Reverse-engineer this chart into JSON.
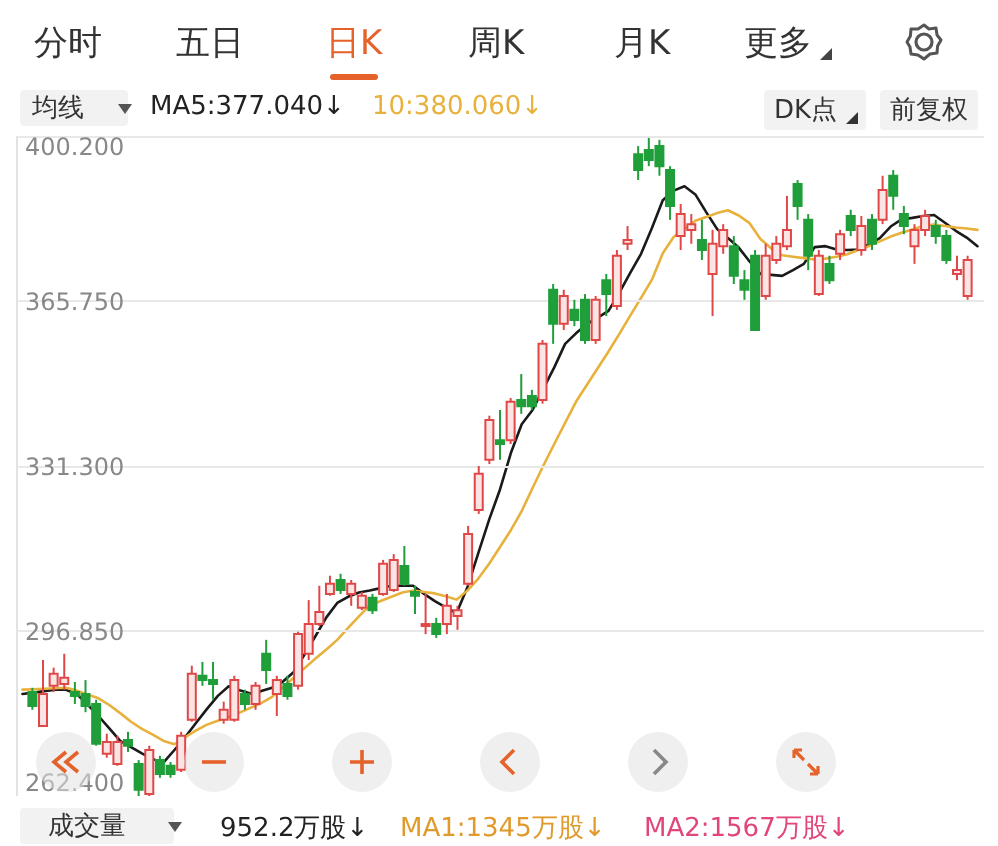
{
  "chart_data": [
    {
      "type": "candlestick",
      "tick_labels": "y",
      "grid": "y",
      "annotations": [
        "分时",
        "五日",
        "日K",
        "周K",
        "月K",
        "更多",
        "均线",
        "MA5:377.040↓",
        "10:380.060↓",
        "DK点",
        "前复权",
        "成交量",
        "952.2万股↓",
        "MA1:1345万股↓",
        "MA2:1567万股↓"
      ],
      "categories": [
        null,
        null,
        null,
        null,
        null,
        null,
        null,
        null,
        null,
        null,
        null,
        null,
        null,
        null,
        null,
        null,
        null,
        null,
        null,
        null,
        null,
        null,
        null,
        null,
        null,
        null,
        null,
        null,
        null,
        null,
        null,
        null,
        null,
        null,
        null,
        null,
        null,
        null,
        null,
        null,
        null,
        null,
        null,
        null,
        null,
        null,
        null,
        null,
        null,
        null,
        null,
        null,
        null,
        null,
        null,
        null,
        null,
        null,
        null,
        null,
        null,
        null,
        null,
        null,
        null,
        null,
        null,
        null,
        null,
        null,
        null,
        null,
        null,
        null,
        null,
        null,
        null,
        null,
        null,
        null,
        null,
        null,
        null,
        null,
        null,
        null,
        null,
        null,
        null
      ],
      "ylim": [
        262.4,
        400.2
      ],
      "yticks": [
        {
          "value": 262.4,
          "label": "262.400"
        },
        {
          "value": 296.85,
          "label": "296.850"
        },
        {
          "value": 331.3,
          "label": "331.300"
        },
        {
          "value": 365.75,
          "label": "365.750"
        },
        {
          "value": 400.2,
          "label": "400.200"
        }
      ],
      "ohlc": [
        [
          284.1,
          285.0,
          280.4,
          281.2
        ],
        [
          277.0,
          290.8,
          277.0,
          283.7
        ],
        [
          285.4,
          289.2,
          284.1,
          287.9
        ],
        [
          285.8,
          292.1,
          284.6,
          287.1
        ],
        [
          284.1,
          286.2,
          281.6,
          283.3
        ],
        [
          283.7,
          286.6,
          279.9,
          281.2
        ],
        [
          281.6,
          282.5,
          272.9,
          273.3
        ],
        [
          271.2,
          275.4,
          270.4,
          273.7
        ],
        [
          269.1,
          275.0,
          268.7,
          273.7
        ],
        [
          274.1,
          275.8,
          271.6,
          272.9
        ],
        [
          269.1,
          269.9,
          262.4,
          263.7
        ],
        [
          262.8,
          272.9,
          262.4,
          272.0
        ],
        [
          269.9,
          270.8,
          266.2,
          267.0
        ],
        [
          268.7,
          269.5,
          266.2,
          267.0
        ],
        [
          267.9,
          275.8,
          267.4,
          275.0
        ],
        [
          278.3,
          289.6,
          277.9,
          287.9
        ],
        [
          287.5,
          290.4,
          285.4,
          286.6
        ],
        [
          286.6,
          290.4,
          282.5,
          285.8
        ],
        [
          278.3,
          282.1,
          277.5,
          280.4
        ],
        [
          278.3,
          287.5,
          277.9,
          286.6
        ],
        [
          283.7,
          284.6,
          280.4,
          281.6
        ],
        [
          281.6,
          286.2,
          280.4,
          285.4
        ],
        [
          292.1,
          295.0,
          285.8,
          288.7
        ],
        [
          283.7,
          287.5,
          279.1,
          286.6
        ],
        [
          285.8,
          287.5,
          282.5,
          283.3
        ],
        [
          285.4,
          296.7,
          284.6,
          296.2
        ],
        [
          292.1,
          303.3,
          290.8,
          298.3
        ],
        [
          298.3,
          306.3,
          297.9,
          300.8
        ],
        [
          304.6,
          308.4,
          304.2,
          306.7
        ],
        [
          307.5,
          308.8,
          304.6,
          305.4
        ],
        [
          304.6,
          307.5,
          302.1,
          306.7
        ],
        [
          301.7,
          305.0,
          301.2,
          304.2
        ],
        [
          303.8,
          304.6,
          300.4,
          301.2
        ],
        [
          304.6,
          311.7,
          304.2,
          310.9
        ],
        [
          305.4,
          312.9,
          305.0,
          311.7
        ],
        [
          310.4,
          314.6,
          306.3,
          306.7
        ],
        [
          305.0,
          306.3,
          300.4,
          304.2
        ],
        [
          297.9,
          304.6,
          296.2,
          298.3
        ],
        [
          298.3,
          299.6,
          295.4,
          296.2
        ],
        [
          298.3,
          304.6,
          296.2,
          302.1
        ],
        [
          300.0,
          302.1,
          297.1,
          301.2
        ],
        [
          306.7,
          318.8,
          306.3,
          317.1
        ],
        [
          322.1,
          331.3,
          321.3,
          329.7
        ],
        [
          332.6,
          341.8,
          331.7,
          340.9
        ],
        [
          336.7,
          343.0,
          332.6,
          335.9
        ],
        [
          336.7,
          345.5,
          335.9,
          344.7
        ],
        [
          345.1,
          350.5,
          342.2,
          343.8
        ],
        [
          345.9,
          347.2,
          343.0,
          343.8
        ],
        [
          345.1,
          357.6,
          344.3,
          356.8
        ],
        [
          368.1,
          369.3,
          356.8,
          361.0
        ],
        [
          361.0,
          368.1,
          359.7,
          366.8
        ],
        [
          363.9,
          366.0,
          360.5,
          361.8
        ],
        [
          366.0,
          367.2,
          356.8,
          357.6
        ],
        [
          357.6,
          366.8,
          356.8,
          366.0
        ],
        [
          370.1,
          371.4,
          362.6,
          367.2
        ],
        [
          364.7,
          376.4,
          363.9,
          375.2
        ],
        [
          377.7,
          381.4,
          376.4,
          378.5
        ],
        [
          396.4,
          398.1,
          391.0,
          393.1
        ],
        [
          397.3,
          399.8,
          393.9,
          395.2
        ],
        [
          398.1,
          399.4,
          391.9,
          393.9
        ],
        [
          393.1,
          393.9,
          382.7,
          385.6
        ],
        [
          379.3,
          386.0,
          376.4,
          383.9
        ],
        [
          380.6,
          383.9,
          377.7,
          381.8
        ],
        [
          378.5,
          382.7,
          374.3,
          376.4
        ],
        [
          371.4,
          380.6,
          362.6,
          377.7
        ],
        [
          377.2,
          381.8,
          375.6,
          380.6
        ],
        [
          377.2,
          379.3,
          369.3,
          371.0
        ],
        [
          370.1,
          372.2,
          366.0,
          368.1
        ],
        [
          375.2,
          376.4,
          359.7,
          359.7
        ],
        [
          366.8,
          377.7,
          366.0,
          375.2
        ],
        [
          374.3,
          379.3,
          373.5,
          377.7
        ],
        [
          377.2,
          387.7,
          376.4,
          380.6
        ],
        [
          390.2,
          391.0,
          382.7,
          385.6
        ],
        [
          382.7,
          383.9,
          372.2,
          375.2
        ],
        [
          367.2,
          376.4,
          366.8,
          375.2
        ],
        [
          373.5,
          375.2,
          369.3,
          370.1
        ],
        [
          375.6,
          380.6,
          374.3,
          379.7
        ],
        [
          383.5,
          384.8,
          379.3,
          380.6
        ],
        [
          376.4,
          383.5,
          375.2,
          381.4
        ],
        [
          382.7,
          383.9,
          376.4,
          377.7
        ],
        [
          382.7,
          391.9,
          381.8,
          388.9
        ],
        [
          391.9,
          393.1,
          384.8,
          387.7
        ],
        [
          383.9,
          385.6,
          379.7,
          381.4
        ],
        [
          377.2,
          381.8,
          373.5,
          380.6
        ],
        [
          380.6,
          384.8,
          379.3,
          383.5
        ],
        [
          381.4,
          382.7,
          377.7,
          379.3
        ],
        [
          379.3,
          380.6,
          373.5,
          374.3
        ],
        [
          371.4,
          375.2,
          370.1,
          372.2
        ],
        [
          366.8,
          375.2,
          366.0,
          374.3
        ]
      ]
    },
    {
      "type": "line",
      "tick_labels": false,
      "categories": [
        null,
        null,
        null,
        null,
        null,
        null,
        null,
        null,
        null,
        null,
        null,
        null,
        null,
        null,
        null,
        null,
        null,
        null,
        null,
        null,
        null,
        null,
        null,
        null,
        null,
        null,
        null,
        null,
        null,
        null,
        null,
        null,
        null,
        null,
        null,
        null,
        null,
        null,
        null,
        null,
        null,
        null,
        null,
        null,
        null,
        null,
        null,
        null,
        null,
        null,
        null,
        null,
        null,
        null,
        null,
        null,
        null,
        null,
        null,
        null,
        null,
        null,
        null,
        null,
        null,
        null,
        null,
        null,
        null,
        null,
        null,
        null,
        null,
        null,
        null,
        null,
        null,
        null,
        null,
        null,
        null,
        null,
        null,
        null,
        null,
        null,
        null,
        null,
        null
      ],
      "ylim": [
        262.4,
        400.2
      ],
      "series": [
        {
          "color": "#1a1a1a",
          "values": [
            283.7,
            284.0,
            284.3,
            284.6,
            284.6,
            283.7,
            281.5,
            279.1,
            276.5,
            273.9,
            272.6,
            271.3,
            270.1,
            269.4,
            272.0,
            274.7,
            277.7,
            280.6,
            283.3,
            285.3,
            284.5,
            283.8,
            284.3,
            285.0,
            286.3,
            288.3,
            292.0,
            295.8,
            299.7,
            302.7,
            304.0,
            304.9,
            305.3,
            305.8,
            306.3,
            306.3,
            306.3,
            304.6,
            303.1,
            301.8,
            300.6,
            306.0,
            313.1,
            320.1,
            326.4,
            334.0,
            340.0,
            343.0,
            null,
            351.9,
            356.8,
            359.0,
            360.9,
            362.3,
            363.7,
            367.5,
            371.6,
            375.6,
            381.0,
            386.8,
            388.8,
            389.7,
            388.0,
            384.3,
            380.8,
            378.9,
            376.9,
            374.0,
            371.4,
            371.2,
            371.0,
            372.2,
            373.5,
            377.0,
            377.2,
            376.5,
            376.4,
            376.5,
            377.6,
            378.9,
            381.3,
            382.8,
            383.1,
            383.5,
            383.7,
            382.1,
            380.4,
            379.0,
            377.2
          ]
        },
        {
          "color": "#e8b13c",
          "values": [
            284.6,
            284.7,
            284.8,
            284.9,
            285.0,
            284.4,
            283.6,
            282.8,
            281.4,
            279.7,
            277.9,
            276.4,
            275.2,
            273.9,
            273.2,
            274.7,
            276.1,
            277.3,
            278.1,
            278.9,
            279.8,
            280.8,
            281.8,
            283.1,
            285.1,
            287.1,
            289.1,
            291.1,
            293.0,
            295.0,
            297.5,
            299.9,
            302.2,
            303.1,
            304.0,
            304.9,
            305.3,
            305.0,
            304.7,
            304.1,
            303.4,
            305.3,
            307.8,
            310.9,
            314.4,
            317.9,
            321.9,
            326.7,
            331.4,
            335.9,
            340.3,
            344.7,
            348.2,
            351.7,
            355.2,
            358.9,
            362.7,
            366.4,
            370.2,
            375.7,
            379.1,
            380.8,
            382.5,
            383.3,
            384.1,
            384.7,
            383.6,
            382.0,
            378.7,
            376.7,
            375.3,
            375.0,
            374.7,
            374.4,
            374.6,
            375.0,
            375.5,
            376.4,
            377.2,
            378.2,
            379.2,
            380.0,
            380.7,
            381.4,
            381.7,
            381.4,
            381.1,
            380.9,
            380.6
          ]
        }
      ]
    }
  ]
}
